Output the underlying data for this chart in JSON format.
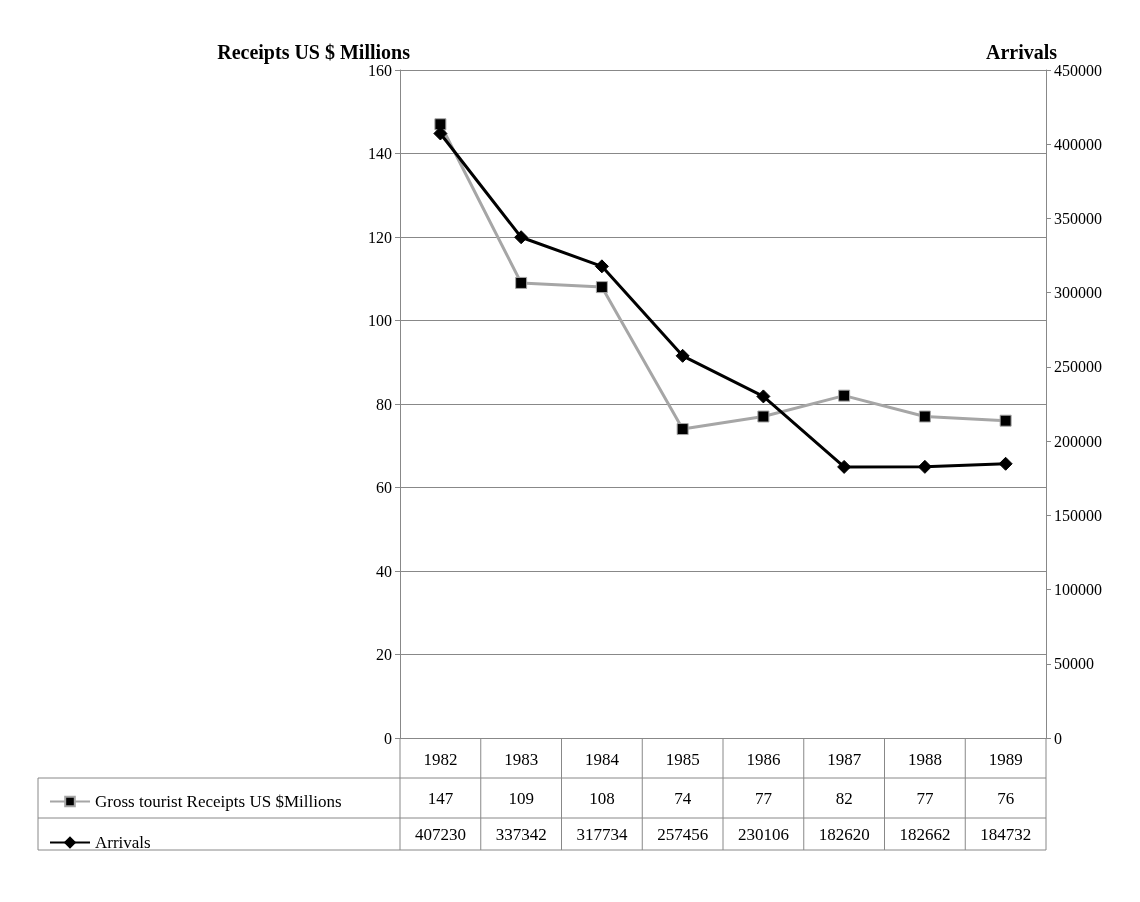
{
  "chart_data": {
    "type": "line",
    "ylabel": "Receipts US $ Millions",
    "y2label": "Arrivals",
    "categories": [
      "1982",
      "1983",
      "1984",
      "1985",
      "1986",
      "1987",
      "1988",
      "1989"
    ],
    "series": [
      {
        "name": "Gross tourist Receipts US $Millions",
        "color": "#a6a6a6",
        "marker": "square",
        "values": [
          147,
          109,
          108,
          74,
          77,
          82,
          77,
          76
        ]
      },
      {
        "name": "Arrivals",
        "color": "#000000",
        "marker": "diamond",
        "axis": "y2",
        "values": [
          407230,
          337342,
          317734,
          257456,
          230106,
          182620,
          182662,
          184732
        ]
      }
    ],
    "ylim": [
      0,
      160
    ],
    "yticks": [
      0,
      20,
      40,
      60,
      80,
      100,
      120,
      140,
      160
    ],
    "y2lim": [
      0,
      450000
    ],
    "y2ticks": [
      0,
      50000,
      100000,
      150000,
      200000,
      250000,
      300000,
      350000,
      400000,
      450000
    ],
    "grid": "y",
    "legend": "bottom left",
    "data_labels": true,
    "line_style": "solid"
  }
}
